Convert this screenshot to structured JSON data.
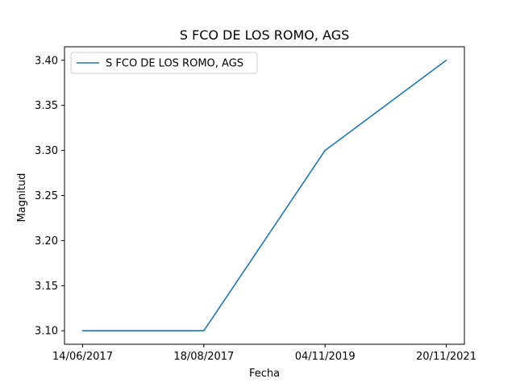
{
  "chart_data": {
    "type": "line",
    "title": "S FCO DE LOS ROMO, AGS",
    "xlabel": "Fecha",
    "ylabel": "Magnitud",
    "categories": [
      "14/06/2017",
      "18/08/2017",
      "04/11/2019",
      "20/11/2021"
    ],
    "series": [
      {
        "name": "S FCO DE LOS ROMO, AGS",
        "values": [
          3.1,
          3.1,
          3.3,
          3.4
        ],
        "color": "#1f77b4"
      }
    ],
    "ylim": [
      3.085,
      3.415
    ],
    "yticks": [
      "3.10",
      "3.15",
      "3.20",
      "3.25",
      "3.30",
      "3.35",
      "3.40"
    ],
    "grid": false,
    "legend": "top-left"
  }
}
